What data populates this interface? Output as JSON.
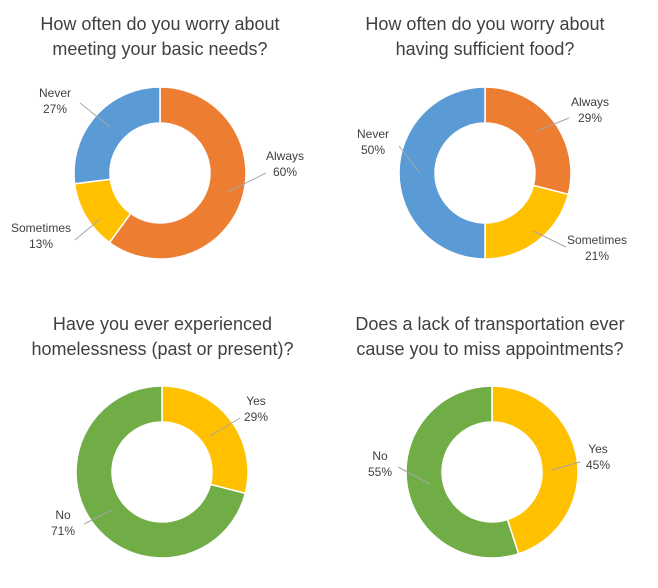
{
  "colors": {
    "always": "#ED7D31",
    "never": "#5B9BD5",
    "sometimes": "#FFC000",
    "yes": "#FFC000",
    "no": "#70AD47",
    "label": "#404040"
  },
  "chart_data": [
    {
      "type": "pie",
      "variant": "donut",
      "title": "How often do you worry about meeting your basic needs?",
      "title_lines": [
        "How often do you worry about",
        "meeting your basic needs?"
      ],
      "slices": [
        {
          "label": "Always",
          "value": 60,
          "value_label": "60%",
          "color": "#ED7D31"
        },
        {
          "label": "Sometimes",
          "value": 13,
          "value_label": "13%",
          "color": "#FFC000"
        },
        {
          "label": "Never",
          "value": 27,
          "value_label": "27%",
          "color": "#5B9BD5"
        }
      ]
    },
    {
      "type": "pie",
      "variant": "donut",
      "title": "How often do you worry about having sufficient food?",
      "title_lines": [
        "How often do you worry about",
        "having sufficient food?"
      ],
      "slices": [
        {
          "label": "Always",
          "value": 29,
          "value_label": "29%",
          "color": "#ED7D31"
        },
        {
          "label": "Sometimes",
          "value": 21,
          "value_label": "21%",
          "color": "#FFC000"
        },
        {
          "label": "Never",
          "value": 50,
          "value_label": "50%",
          "color": "#5B9BD5"
        }
      ]
    },
    {
      "type": "pie",
      "variant": "donut",
      "title": "Have you ever experienced homelessness (past or present)?",
      "title_lines": [
        "Have you ever experienced",
        "homelessness (past or present)?"
      ],
      "slices": [
        {
          "label": "Yes",
          "value": 29,
          "value_label": "29%",
          "color": "#FFC000"
        },
        {
          "label": "No",
          "value": 71,
          "value_label": "71%",
          "color": "#70AD47"
        }
      ]
    },
    {
      "type": "pie",
      "variant": "donut",
      "title": "Does a lack of transportation ever cause you to miss appointments?",
      "title_lines": [
        "Does a lack of transportation ever",
        "cause you to miss appointments?"
      ],
      "slices": [
        {
          "label": "Yes",
          "value": 45,
          "value_label": "45%",
          "color": "#FFC000"
        },
        {
          "label": "No",
          "value": 55,
          "value_label": "55%",
          "color": "#70AD47"
        }
      ]
    }
  ]
}
